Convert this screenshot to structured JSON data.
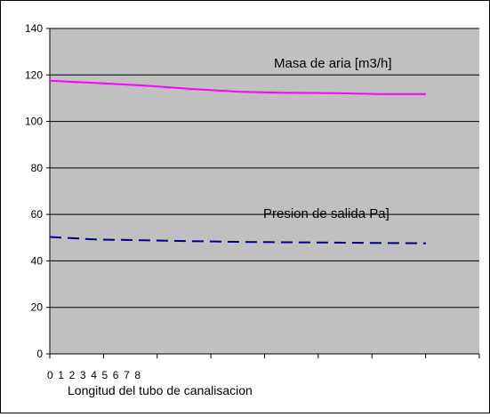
{
  "chart_data": {
    "type": "line",
    "title": "",
    "xlabel": "Longitud del tubo de canalisacion",
    "ylabel": "",
    "x": [
      0,
      1,
      2,
      3,
      4,
      5,
      6,
      7,
      8
    ],
    "x_tick_labels": [
      "0",
      "1",
      "2",
      "3",
      "4",
      "5",
      "6",
      "7",
      "8"
    ],
    "ylim": [
      0,
      140
    ],
    "y_ticks": [
      0,
      20,
      40,
      60,
      80,
      100,
      120,
      140
    ],
    "grid": true,
    "plot_background": "#c0c0c0",
    "series": [
      {
        "name": "Masa de aria [m3/h]",
        "color": "#ff00ff",
        "line_style": "solid",
        "values": [
          117.5,
          116.5,
          115.5,
          114,
          112.8,
          112.3,
          112.2,
          111.8,
          111.8
        ]
      },
      {
        "name": "Presion de salida Pa]",
        "color": "#000080",
        "line_style": "dashed",
        "values": [
          50.3,
          49.2,
          48.9,
          48.5,
          48.2,
          48,
          47.9,
          47.7,
          47.6
        ]
      }
    ]
  }
}
